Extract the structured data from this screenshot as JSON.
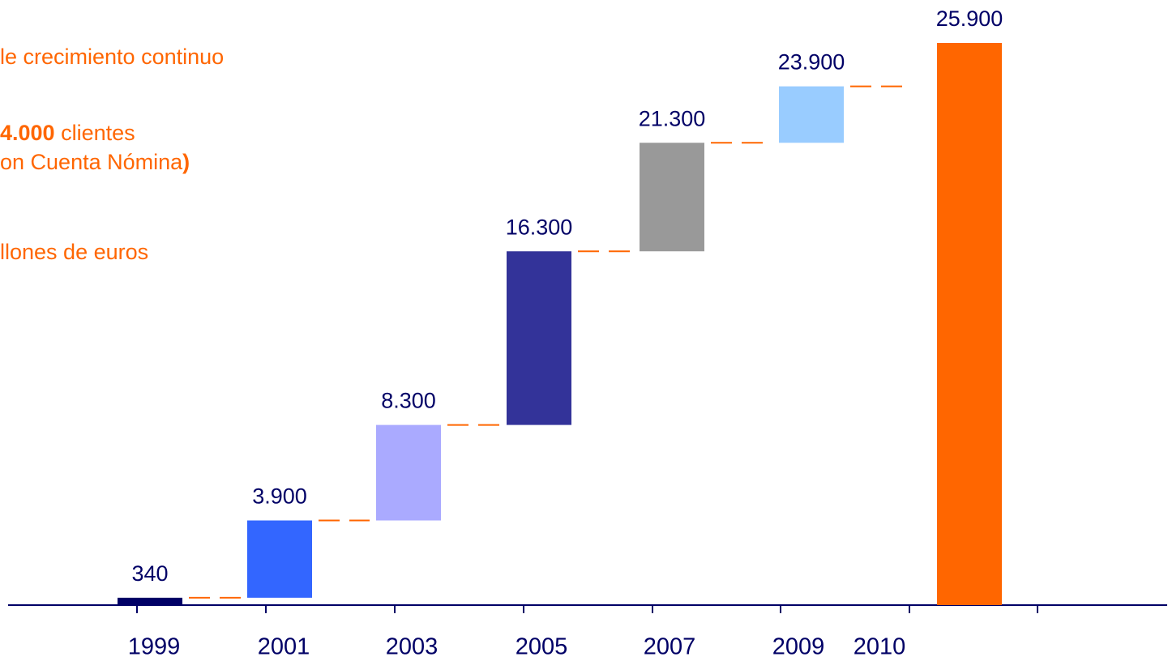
{
  "chart_data": {
    "type": "waterfall",
    "annotations": [
      {
        "parts": [
          "le crecimiento continuo"
        ]
      },
      {
        "parts": [
          "4.000",
          " clientes"
        ]
      },
      {
        "parts": [
          "on Cuenta Nómina",
          ")"
        ]
      },
      {
        "parts": [
          "llones de euros"
        ]
      }
    ],
    "categories": [
      "1999",
      "2001",
      "2003",
      "2005",
      "2007",
      "2009",
      "2010"
    ],
    "values": [
      340,
      3900,
      8300,
      16300,
      21300,
      23900,
      25900
    ],
    "value_labels": [
      "340",
      "3.900",
      "8.300",
      "16.300",
      "21.300",
      "23.900",
      "25.900"
    ],
    "colors": [
      "#000066",
      "#3366ff",
      "#aaaaff",
      "#333399",
      "#999999",
      "#99ccff",
      "#ff6600"
    ],
    "total_last": true,
    "connector_color": "#ff6600"
  }
}
